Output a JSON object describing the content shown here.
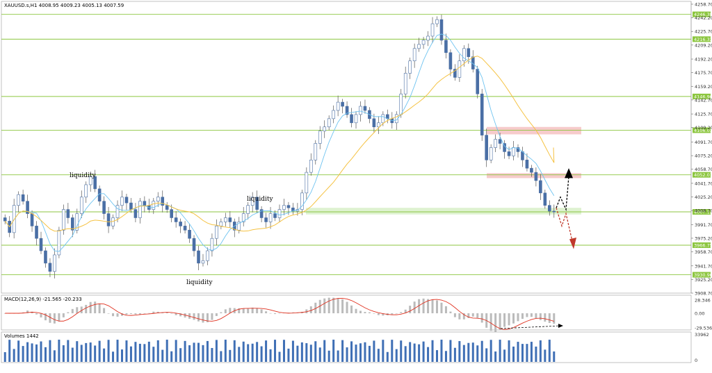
{
  "chart_data": [
    {
      "type": "candlestick",
      "title": "XAUUSD.s,H1  4008.95 4009.23 4005.13 4007.59",
      "symbol": "XAUUSD.s,H1",
      "ohlc": [
        "4008.95",
        "4009.23",
        "4005.13",
        "4007.59"
      ],
      "ylim": [
        3908.7,
        4258.7
      ],
      "y_ticks": [
        "4258.70",
        "4242.20",
        "4225.70",
        "4209.20",
        "4192.20",
        "4175.70",
        "4159.20",
        "4142.70",
        "4125.70",
        "4109.20",
        "4091.70",
        "4075.20",
        "4058.70",
        "4041.70",
        "4025.20",
        "4008.70",
        "3991.70",
        "3975.20",
        "3958.70",
        "3941.70",
        "3925.20",
        "3908.70"
      ],
      "levels": [
        {
          "label": "4246.38",
          "value": 4246.38
        },
        {
          "label": "4216.32",
          "value": 4216.32
        },
        {
          "label": "4146.90",
          "value": 4146.9
        },
        {
          "label": "4106.03",
          "value": 4106.03
        },
        {
          "label": "4052.01",
          "value": 4052.01
        },
        {
          "label": "4007.13",
          "value": 4007.13
        },
        {
          "label": "3966.75",
          "value": 3966.75
        },
        {
          "label": "3930.96",
          "value": 3930.96
        }
      ],
      "zones": [
        {
          "from": 4101,
          "to": 4110,
          "color": "#f4c2c2"
        },
        {
          "from": 4048,
          "to": 4054,
          "color": "#f4c2c2"
        },
        {
          "from": 4004,
          "to": 4012,
          "color": "#d8f0c8"
        }
      ],
      "annotations": [
        "liquidity",
        "liquidity",
        "liquidity"
      ],
      "closes": [
        3996,
        3982,
        4015,
        4028,
        4020,
        4005,
        3990,
        3975,
        3960,
        3945,
        3935,
        3955,
        3985,
        4010,
        4000,
        3985,
        4005,
        4025,
        4040,
        4050,
        4035,
        4020,
        4005,
        3990,
        4000,
        4015,
        4025,
        4018,
        4010,
        4000,
        4020,
        4015,
        4010,
        4020,
        4025,
        4015,
        4010,
        4000,
        3995,
        3990,
        3985,
        3975,
        3960,
        3945,
        3948,
        3960,
        3975,
        3990,
        3995,
        4000,
        3995,
        3985,
        3995,
        4005,
        4015,
        4025,
        4010,
        4000,
        3995,
        4005,
        4000,
        4010,
        4015,
        4012,
        4008,
        4010,
        4030,
        4055,
        4070,
        4090,
        4105,
        4110,
        4120,
        4130,
        4140,
        4135,
        4125,
        4115,
        4125,
        4135,
        4130,
        4120,
        4110,
        4115,
        4125,
        4120,
        4115,
        4125,
        4150,
        4175,
        4190,
        4205,
        4210,
        4215,
        4220,
        4235,
        4240,
        4215,
        4200,
        4180,
        4170,
        4190,
        4205,
        4195,
        4180,
        4150,
        4100,
        4070,
        4085,
        4095,
        4090,
        4080,
        4075,
        4085,
        4080,
        4070,
        4060,
        4055,
        4045,
        4030,
        4015,
        4008,
        4007
      ]
    },
    {
      "type": "macd",
      "label": "MACD(12,26,9) -21.565 -20.233",
      "y_ticks": [
        "28.346",
        "0.00",
        "-29.536"
      ],
      "ylim": [
        -29.536,
        28.346
      ]
    },
    {
      "type": "bar",
      "label": "Volumes 1442",
      "y_ticks": [
        "33962",
        "0"
      ]
    }
  ]
}
